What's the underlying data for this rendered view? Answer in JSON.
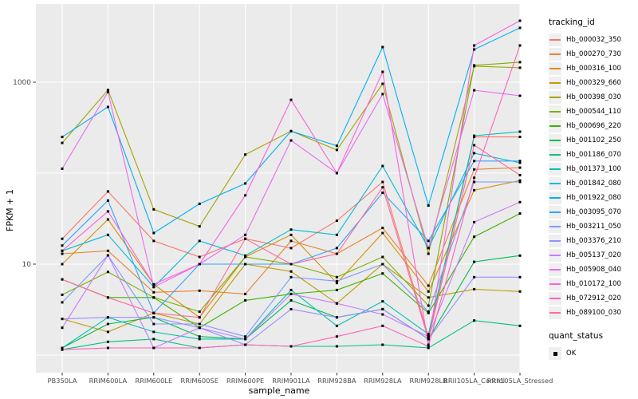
{
  "figure": {
    "y_axis": {
      "title": "FPKM + 1",
      "tick_labels": [
        "1000",
        "10"
      ]
    },
    "x_axis": {
      "title": "sample_name"
    },
    "legend": {
      "tracking_title": "tracking_id",
      "quant_title": "quant_status",
      "quant_ok_label": "OK"
    },
    "colors": {
      "panel_bg": "#EBEBEB",
      "gridline": "#FFFFFF",
      "tick_text": "#4D4D4D",
      "axis_text": "#000000",
      "point": "#000000",
      "legend_key_bg": "#EFEFEF"
    }
  },
  "chart_data": {
    "type": "line",
    "title": "",
    "xlabel": "sample_name",
    "ylabel": "FPKM + 1",
    "y_scale": "log10",
    "ylim": [
      0.65,
      6000
    ],
    "y_ticks": [
      10,
      1000
    ],
    "gridlines_y": [
      1,
      10,
      100,
      1000
    ],
    "grid": true,
    "legend_position": "right",
    "point_marker": "filled-black-square",
    "categories": [
      "PB350LA",
      "RRIM600LA",
      "RRIM600LE",
      "RRIM600SE",
      "RRIM600PE",
      "RRIM901LA",
      "RRIM928BA",
      "RRIM928LA",
      "RRIM928LB",
      "RRII105LA_Control",
      "RRII105LA_Stressed"
    ],
    "series": [
      {
        "name": "Hb_000032_350",
        "color": "#F8766D",
        "values": [
          19,
          63,
          18,
          12,
          19,
          15,
          30,
          80,
          1.6,
          250,
          250
        ]
      },
      {
        "name": "Hb_000270_730",
        "color": "#EA8331",
        "values": [
          13,
          14,
          4.9,
          5.1,
          4.7,
          18,
          13,
          25,
          5.8,
          110,
          115
        ]
      },
      {
        "name": "Hb_000316_100",
        "color": "#D89000",
        "values": [
          10,
          31,
          6.0,
          2.6,
          12,
          21,
          6.2,
          22,
          5.0,
          65,
          83
        ]
      },
      {
        "name": "Hb_000329_660",
        "color": "#C09B00",
        "values": [
          2.5,
          1.8,
          2.9,
          2.2,
          10,
          8.3,
          3.7,
          10,
          4.3,
          5.3,
          5.0
        ]
      },
      {
        "name": "Hb_000398_030",
        "color": "#A3A500",
        "values": [
          215,
          820,
          40,
          26,
          160,
          290,
          180,
          960,
          13,
          1500,
          1440
        ]
      },
      {
        "name": "Hb_000544_110",
        "color": "#7CAE00",
        "values": [
          4.6,
          8.2,
          4.3,
          3.0,
          12,
          10,
          7.2,
          12,
          3.5,
          1530,
          1660
        ]
      },
      {
        "name": "Hb_000696_220",
        "color": "#39B600",
        "values": [
          6.8,
          4.3,
          4.3,
          2.0,
          4.0,
          4.7,
          5.2,
          7.9,
          2.9,
          20,
          36
        ]
      },
      {
        "name": "Hb_001102_250",
        "color": "#00BB4E",
        "values": [
          1.2,
          2.2,
          2.6,
          1.6,
          1.5,
          4.0,
          2.6,
          3.2,
          1.5,
          10.6,
          12.4
        ]
      },
      {
        "name": "Hb_001186_070",
        "color": "#00C087",
        "values": [
          1.15,
          1.4,
          1.5,
          1.2,
          1.3,
          1.25,
          1.25,
          1.3,
          1.2,
          2.4,
          2.1
        ]
      },
      {
        "name": "Hb_001373_100",
        "color": "#00C0B2",
        "values": [
          1.2,
          2.6,
          1.8,
          1.5,
          1.5,
          5.2,
          2.1,
          3.9,
          1.7,
          258,
          286
        ]
      },
      {
        "name": "Hb_001842_080",
        "color": "#00BCD8",
        "values": [
          14,
          21,
          5.6,
          18,
          12.4,
          24,
          21,
          120,
          15,
          166,
          130
        ]
      },
      {
        "name": "Hb_001922_080",
        "color": "#00B0F6",
        "values": [
          250,
          535,
          22,
          46,
          77,
          290,
          200,
          2430,
          44,
          2290,
          3960
        ]
      },
      {
        "name": "Hb_003095_070",
        "color": "#35A2FF",
        "values": [
          16,
          50,
          2.9,
          10,
          10,
          10,
          15,
          61,
          18,
          136,
          136
        ]
      },
      {
        "name": "Hb_003211_050",
        "color": "#7B9BFF",
        "values": [
          3.8,
          12.5,
          2.2,
          2.2,
          1.6,
          7.2,
          6.5,
          10,
          3.0,
          80,
          80
        ]
      },
      {
        "name": "Hb_003376_210",
        "color": "#9590FF",
        "values": [
          2.5,
          2.6,
          2.6,
          2.0,
          1.3,
          3.2,
          2.6,
          3.2,
          1.5,
          7.2,
          7.2
        ]
      },
      {
        "name": "Hb_005137_020",
        "color": "#C77CFF",
        "values": [
          2.0,
          12.5,
          1.2,
          2.0,
          1.5,
          4.7,
          3.7,
          2.8,
          1.6,
          29,
          48
        ]
      },
      {
        "name": "Hb_005908_040",
        "color": "#E76BF3",
        "values": [
          112,
          780,
          5.6,
          10,
          21,
          229,
          100,
          740,
          15,
          816,
          710
        ]
      },
      {
        "name": "Hb_010172_100",
        "color": "#FA62DB",
        "values": [
          14,
          38,
          6.0,
          10,
          57,
          640,
          100,
          1300,
          1.3,
          2530,
          4740
        ]
      },
      {
        "name": "Hb_072912_020",
        "color": "#FF62BC",
        "values": [
          1.15,
          1.2,
          1.2,
          1.2,
          1.3,
          1.25,
          1.6,
          2.1,
          1.25,
          89,
          2530
        ]
      },
      {
        "name": "Hb_089100_030",
        "color": "#FF6A98",
        "values": [
          6.8,
          4.3,
          2.9,
          2.6,
          19,
          10,
          13,
          70,
          1.5,
          203,
          95
        ]
      }
    ]
  }
}
